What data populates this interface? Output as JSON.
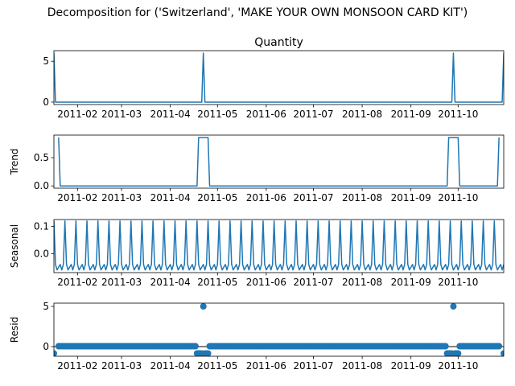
{
  "figure": {
    "suptitle": "Decomposition for ('Switzerland', 'MAKE YOUR OWN MONSOON CARD KIT')"
  },
  "chart_data": [
    {
      "type": "line",
      "title": "Quantity",
      "ylabel": "",
      "x_range": [
        "2011-01-17",
        "2011-10-30"
      ],
      "x_ticks": [
        "2011-02",
        "2011-03",
        "2011-04",
        "2011-05",
        "2011-06",
        "2011-07",
        "2011-08",
        "2011-09",
        "2011-10"
      ],
      "y_range": [
        -0.3,
        6.3
      ],
      "y_ticks": [
        0,
        5
      ],
      "color": "#1f77b4",
      "series": [
        {
          "x": [
            "2011-01-17",
            "2011-01-18",
            "2011-04-21",
            "2011-04-22",
            "2011-04-23",
            "2011-09-27",
            "2011-09-28",
            "2011-09-29",
            "2011-10-29",
            "2011-10-30"
          ],
          "y": [
            6,
            0,
            0,
            6,
            0,
            0,
            6,
            0,
            0,
            6
          ]
        }
      ]
    },
    {
      "type": "line",
      "title": "",
      "ylabel": "Trend",
      "x_range": [
        "2011-01-17",
        "2011-10-30"
      ],
      "x_ticks": [
        "2011-02",
        "2011-03",
        "2011-04",
        "2011-05",
        "2011-06",
        "2011-07",
        "2011-08",
        "2011-09",
        "2011-10"
      ],
      "y_range": [
        -0.04,
        0.9
      ],
      "y_ticks": [
        0.0,
        0.5
      ],
      "color": "#1f77b4",
      "series": [
        {
          "x": [
            "2011-01-20",
            "2011-01-21",
            "2011-04-18",
            "2011-04-19",
            "2011-04-25",
            "2011-04-26",
            "2011-09-24",
            "2011-09-25",
            "2011-10-01",
            "2011-10-02",
            "2011-10-26",
            "2011-10-27"
          ],
          "y": [
            0.857,
            0,
            0,
            0.857,
            0.857,
            0,
            0,
            0.857,
            0.857,
            0,
            0,
            0.857
          ]
        }
      ]
    },
    {
      "type": "line",
      "title": "",
      "ylabel": "Seasonal",
      "x_range": [
        "2011-01-17",
        "2011-10-30"
      ],
      "x_ticks": [
        "2011-02",
        "2011-03",
        "2011-04",
        "2011-05",
        "2011-06",
        "2011-07",
        "2011-08",
        "2011-09",
        "2011-10"
      ],
      "y_range": [
        -0.07,
        0.125
      ],
      "y_ticks": [
        0.0,
        0.1
      ],
      "color": "#1f77b4",
      "seasonal_period_days": 7,
      "seasonal_pattern": [
        0.12,
        -0.04,
        -0.06,
        -0.05,
        -0.04,
        -0.06,
        -0.04
      ]
    },
    {
      "type": "scatter",
      "title": "",
      "ylabel": "Resid",
      "x_range": [
        "2011-01-17",
        "2011-10-30"
      ],
      "x_ticks": [
        "2011-02",
        "2011-03",
        "2011-04",
        "2011-05",
        "2011-06",
        "2011-07",
        "2011-08",
        "2011-09",
        "2011-10"
      ],
      "y_range": [
        -1.2,
        5.4
      ],
      "y_ticks": [
        0,
        5
      ],
      "color": "#1f77b4",
      "baseline": 0,
      "marker_days": {
        "start": "2011-01-20",
        "end": "2011-10-27",
        "value": 0.05
      },
      "special_points": [
        {
          "x": "2011-01-17",
          "y": -0.85
        },
        {
          "x": "2011-04-18",
          "y": -0.85
        },
        {
          "x": "2011-04-19",
          "y": -0.85
        },
        {
          "x": "2011-04-20",
          "y": -0.85
        },
        {
          "x": "2011-04-21",
          "y": -0.85
        },
        {
          "x": "2011-04-22",
          "y": 5.0
        },
        {
          "x": "2011-04-23",
          "y": -0.85
        },
        {
          "x": "2011-04-24",
          "y": -0.85
        },
        {
          "x": "2011-04-25",
          "y": -0.85
        },
        {
          "x": "2011-09-24",
          "y": -0.85
        },
        {
          "x": "2011-09-25",
          "y": -0.85
        },
        {
          "x": "2011-09-26",
          "y": -0.85
        },
        {
          "x": "2011-09-27",
          "y": -0.85
        },
        {
          "x": "2011-09-28",
          "y": 5.0
        },
        {
          "x": "2011-09-29",
          "y": -0.85
        },
        {
          "x": "2011-09-30",
          "y": -0.85
        },
        {
          "x": "2011-10-01",
          "y": -0.85
        },
        {
          "x": "2011-10-30",
          "y": -0.85
        }
      ]
    }
  ]
}
